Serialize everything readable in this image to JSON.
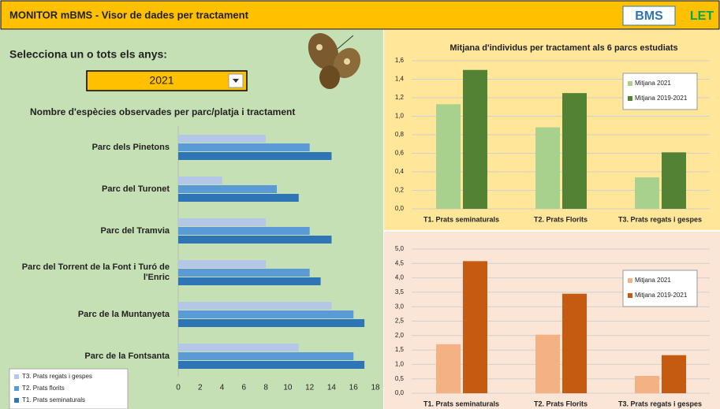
{
  "header": {
    "title": "MONITOR mBMS  -  Visor de dades per tractament",
    "logo_left": "BMS",
    "logo_right": "LET"
  },
  "selector": {
    "label": "Selecciona un o tots els anys:",
    "value": "2021"
  },
  "chart_data": [
    {
      "type": "hbar",
      "title": "Nombre d'espècies observades per parc/platja i tractament",
      "categories": [
        "Parc dels Pinetons",
        "Parc del Turonet",
        "Parc del Tramvia",
        "Parc del Torrent de la Font i Turó de l'Enric",
        "Parc de la Muntanyeta",
        "Parc de la Fontsanta"
      ],
      "series": [
        {
          "name": "T3. Prats regats i gespes",
          "color": "#b4c7e7",
          "values": [
            8,
            4,
            8,
            8,
            14,
            11
          ]
        },
        {
          "name": "T2.  Prats florits",
          "color": "#5b9bd5",
          "values": [
            12,
            9,
            12,
            12,
            16,
            16
          ]
        },
        {
          "name": "T1. Prats seminaturals",
          "color": "#2e75b6",
          "values": [
            14,
            11,
            14,
            13,
            17,
            17
          ]
        }
      ],
      "xlim": [
        0,
        18
      ],
      "xticks": [
        0,
        2,
        4,
        6,
        8,
        10,
        12,
        14,
        16,
        18
      ]
    },
    {
      "type": "bar",
      "title": "Mitjana d'individus per tractament als 6 parcs estudiats",
      "categories": [
        "T1. Prats seminaturals",
        "T2. Prats Florits",
        "T3. Prats regats i gespes"
      ],
      "series": [
        {
          "name": "Mitjana 2021",
          "color": "#a9d18e",
          "values": [
            1.13,
            0.88,
            0.34
          ]
        },
        {
          "name": "Mitjana 2019-2021",
          "color": "#548235",
          "values": [
            1.5,
            1.25,
            0.61
          ]
        }
      ],
      "ylim": [
        0,
        1.6
      ],
      "yticks": [
        {
          "value": 0,
          "label": "0,0"
        },
        {
          "value": 0.2,
          "label": "0,2"
        },
        {
          "value": 0.4,
          "label": "0,4"
        },
        {
          "value": 0.6,
          "label": "0,6"
        },
        {
          "value": 0.8,
          "label": "0,8"
        },
        {
          "value": 1,
          "label": "1,0"
        },
        {
          "value": 1.2,
          "label": "1,2"
        },
        {
          "value": 1.4,
          "label": "1,4"
        },
        {
          "value": 1.6,
          "label": "1,6"
        }
      ],
      "grid": true
    },
    {
      "type": "bar",
      "categories": [
        "T1. Prats seminaturals",
        "T2. Prats Florits",
        "T3. Prats regats i gespes"
      ],
      "series": [
        {
          "name": "Mitjana 2021",
          "color": "#f4b183",
          "values": [
            1.7,
            2.03,
            0.6
          ]
        },
        {
          "name": "Mitjana 2019-2021",
          "color": "#c55a11",
          "values": [
            4.58,
            3.45,
            1.32
          ]
        }
      ],
      "ylim": [
        0,
        5
      ],
      "yticks": [
        {
          "value": 0,
          "label": "0,0"
        },
        {
          "value": 0.5,
          "label": "0,5"
        },
        {
          "value": 1,
          "label": "1,0"
        },
        {
          "value": 1.5,
          "label": "1,5"
        },
        {
          "value": 2,
          "label": "2,0"
        },
        {
          "value": 2.5,
          "label": "2,5"
        },
        {
          "value": 3,
          "label": "3,0"
        },
        {
          "value": 3.5,
          "label": "3,5"
        },
        {
          "value": 4,
          "label": "4,0"
        },
        {
          "value": 4.5,
          "label": "4,5"
        },
        {
          "value": 5,
          "label": "5,0"
        }
      ],
      "grid": true
    }
  ]
}
